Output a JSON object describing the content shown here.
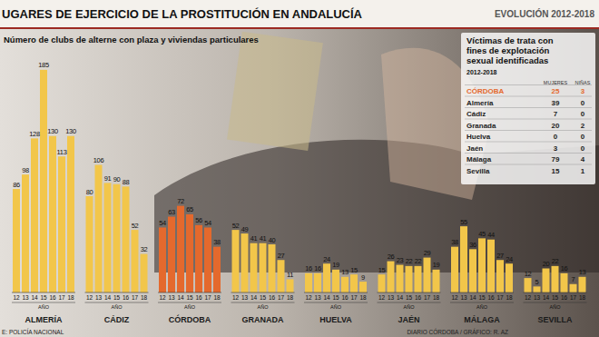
{
  "chart_data": {
    "type": "bar",
    "title": "UGARES DE EJERCICIO DE LA PROSTITUCIÓN EN ANDALUCÍA",
    "subtitle": "Número de clubs de alterne con plaza y viviendas particulares",
    "x_label": "AÑO",
    "categories": [
      "12",
      "13",
      "14",
      "15",
      "16",
      "17",
      "18"
    ],
    "series": [
      {
        "name": "ALMERÍA",
        "color": "#f2c64a",
        "values": [
          86,
          98,
          128,
          185,
          130,
          113,
          130
        ]
      },
      {
        "name": "CÁDIZ",
        "color": "#f2c64a",
        "values": [
          80,
          106,
          91,
          90,
          88,
          52,
          32
        ]
      },
      {
        "name": "CÓRDOBA",
        "color": "#e4692d",
        "values": [
          54,
          63,
          72,
          65,
          56,
          54,
          38
        ]
      },
      {
        "name": "GRANADA",
        "color": "#f2c64a",
        "values": [
          52,
          49,
          41,
          41,
          40,
          27,
          11
        ]
      },
      {
        "name": "HUELVA",
        "color": "#f2c64a",
        "values": [
          16,
          16,
          24,
          19,
          13,
          15,
          9
        ]
      },
      {
        "name": "JAÉN",
        "color": "#f2c64a",
        "values": [
          15,
          26,
          23,
          22,
          22,
          29,
          19
        ]
      },
      {
        "name": "MÁLAGA",
        "color": "#f2c64a",
        "values": [
          38,
          55,
          36,
          45,
          44,
          27,
          24
        ]
      },
      {
        "name": "SEVILLA",
        "color": "#f2c64a",
        "values": [
          12,
          5,
          20,
          22,
          16,
          7,
          13
        ]
      }
    ],
    "ylim": [
      0,
      200
    ],
    "data_labels": true,
    "tick_labels": "x"
  },
  "header": {
    "period": "EVOLUCIÓN 2012-2018"
  },
  "table": {
    "title_lines": [
      "Víctimas de trata con",
      "fines de explotación",
      "sexual identificadas"
    ],
    "period": "2012-2018",
    "columns": [
      "MUJERES",
      "NIÑAS"
    ],
    "rows": [
      {
        "name": "CÓRDOBA",
        "values": [
          25,
          3
        ],
        "color": "#e4692d"
      },
      {
        "name": "Almería",
        "values": [
          39,
          0
        ],
        "color": "#222222"
      },
      {
        "name": "Cádiz",
        "values": [
          7,
          0
        ],
        "color": "#222222"
      },
      {
        "name": "Granada",
        "values": [
          20,
          2
        ],
        "color": "#222222"
      },
      {
        "name": "Huelva",
        "values": [
          0,
          0
        ],
        "color": "#222222"
      },
      {
        "name": "Jaén",
        "values": [
          3,
          0
        ],
        "color": "#222222"
      },
      {
        "name": "Málaga",
        "values": [
          79,
          4
        ],
        "color": "#222222"
      },
      {
        "name": "Sevilla",
        "values": [
          15,
          1
        ],
        "color": "#222222"
      }
    ]
  },
  "footer": {
    "source": "E: POLICÍA NACIONAL",
    "credit": "DIARIO CÓRDOBA / GRÁFICO: R. AZ"
  }
}
